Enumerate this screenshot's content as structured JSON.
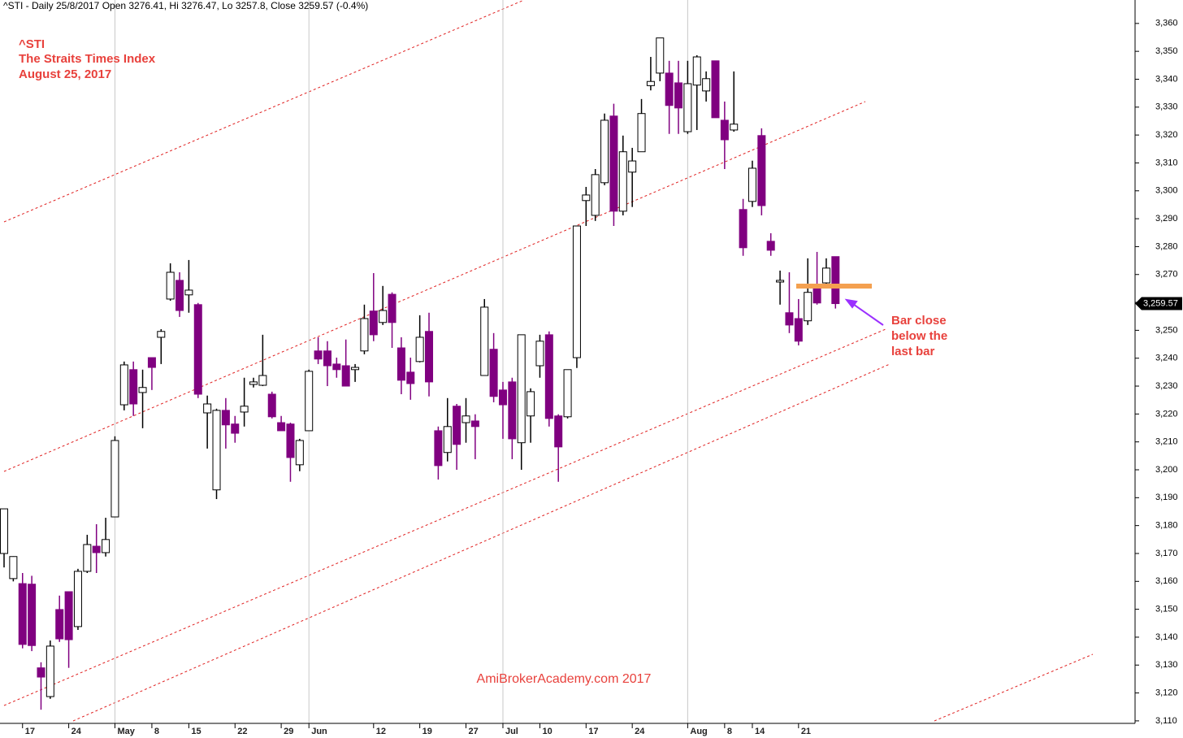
{
  "chart_data": {
    "type": "candlestick",
    "header": "^STI - Daily 25/8/2017 Open 3276.41, Hi 3276.47, Lo 3257.8, Close 3259.57 (-0.4%)",
    "title": "^STI",
    "subtitle": "The Straits Times Index",
    "date": "August 25, 2017",
    "annotation": [
      "Bar close",
      "below the",
      "last bar"
    ],
    "watermark": "AmiBrokerAcademy.com  2017",
    "categories": [
      null,
      null,
      "17",
      null,
      null,
      null,
      null,
      "24",
      null,
      null,
      null,
      null,
      "May",
      null,
      null,
      null,
      "8",
      null,
      null,
      null,
      "15",
      null,
      null,
      null,
      null,
      "22",
      null,
      null,
      null,
      null,
      "29",
      null,
      null,
      "Jun",
      null,
      null,
      null,
      null,
      null,
      null,
      "12",
      null,
      null,
      null,
      null,
      "19",
      null,
      null,
      null,
      null,
      "27",
      null,
      null,
      null,
      "Jul",
      null,
      null,
      null,
      "10",
      null,
      null,
      null,
      null,
      "17",
      null,
      null,
      null,
      null,
      "24",
      null,
      null,
      null,
      null,
      null,
      "Aug",
      null,
      null,
      null,
      "8",
      null,
      null,
      "14",
      null,
      null,
      null,
      null,
      "21",
      null,
      null,
      null,
      null
    ],
    "open": [
      3170,
      3161,
      3159.2,
      3159,
      3129,
      3118.7,
      3149.9,
      3156.3,
      3143.8,
      3163.6,
      3172.6,
      3170.3,
      3183.1,
      3223.3,
      3235.9,
      3227.7,
      3240.2,
      3247.5,
      3261.2,
      3267.9,
      3262.7,
      3259.2,
      3220.4,
      3192.8,
      3221.3,
      3216.4,
      3220.7,
      3230.6,
      3230.3,
      3227.1,
      3216.9,
      3216.4,
      3201.8,
      3214,
      3242.6,
      3242.6,
      3237.9,
      3237.3,
      3235.9,
      3242.6,
      3256.9,
      3252.8,
      3262.9,
      3243.7,
      3235,
      3238.8,
      3249.6,
      3214,
      3206.2,
      3222.8,
      3216.9,
      3217.5,
      3233.8,
      3243.2,
      3228.6,
      3231.5,
      3209.7,
      3219.3,
      3237.3,
      3248.4,
      3219.3,
      3219,
      3240.2,
      3296.5,
      3291.2,
      3302.9,
      3326.8,
      3292.7,
      3306.7,
      3314,
      3337.7,
      3342.2,
      3342.2,
      3338.7,
      3321.2,
      3337.9,
      3335.8,
      3346.6,
      3325.3,
      3321.8,
      3293.3,
      3296.2,
      3319.8,
      3281.9,
      3267.3,
      3256.3,
      3254.2,
      3253.4,
      3265.9,
      3267,
      3276.41
    ],
    "high": [
      3186,
      3169,
      3163,
      3162,
      3131,
      3138.8,
      3154.9,
      3156.3,
      3164.5,
      3176.7,
      3180.5,
      3182.8,
      3212,
      3238.8,
      3238.8,
      3235.9,
      3240.2,
      3250.4,
      3274,
      3270.8,
      3275.2,
      3259.8,
      3226.6,
      3221.9,
      3225.7,
      3219.3,
      3233,
      3233,
      3248.4,
      3228,
      3219.3,
      3216.9,
      3211.1,
      3235.9,
      3247.5,
      3246.1,
      3240.2,
      3246.7,
      3237.9,
      3259.2,
      3270.5,
      3265.9,
      3263.6,
      3247.5,
      3240.2,
      3255.4,
      3256.3,
      3215.5,
      3225.7,
      3223.6,
      3225.7,
      3219.9,
      3261.2,
      3249,
      3231.5,
      3233,
      3248.4,
      3229.2,
      3248.4,
      3249.6,
      3219.9,
      3235.9,
      3287.4,
      3301.4,
      3307.8,
      3327.7,
      3331.2,
      3319.8,
      3315.4,
      3332.9,
      3348,
      3354.8,
      3346.6,
      3346.6,
      3346.6,
      3348.6,
      3342.8,
      3346.6,
      3332,
      3342.8,
      3297.1,
      3310.8,
      3322.4,
      3284.8,
      3271.4,
      3270.8,
      3261.2,
      3275.8,
      3278.1,
      3275.8,
      3276.47
    ],
    "low": [
      3165,
      3160,
      3136,
      3135,
      3114,
      3117.9,
      3138.3,
      3129,
      3142.6,
      3163,
      3163,
      3168.9,
      3183,
      3221.3,
      3219.3,
      3214.9,
      3228.6,
      3237.9,
      3260.6,
      3254.8,
      3256.3,
      3225.7,
      3207.6,
      3189.5,
      3207.6,
      3209.7,
      3215.5,
      3229.5,
      3230,
      3218.4,
      3214,
      3195.7,
      3199.5,
      3214,
      3237.9,
      3230,
      3233,
      3230,
      3231.5,
      3241.4,
      3246.1,
      3251.9,
      3243.7,
      3227.1,
      3225.1,
      3238.5,
      3226.3,
      3196.5,
      3203,
      3200,
      3209.7,
      3203.8,
      3233.8,
      3224.2,
      3211.1,
      3203.8,
      3200,
      3209.7,
      3233,
      3215.5,
      3195.7,
      3218.4,
      3236.5,
      3287.4,
      3289.2,
      3302,
      3287.4,
      3291.2,
      3294.2,
      3314,
      3336,
      3339.3,
      3320.4,
      3320.4,
      3320.4,
      3321.8,
      3332,
      3326.2,
      3307.8,
      3321.2,
      3276.7,
      3294.2,
      3291.2,
      3276.7,
      3259.2,
      3249,
      3244.6,
      3251.9,
      3259.2,
      3265.9,
      3257.8
    ],
    "close": [
      3186,
      3168.9,
      3137.4,
      3137,
      3125.7,
      3136.8,
      3139.4,
      3139.1,
      3163.6,
      3173.2,
      3170.3,
      3175,
      3210.5,
      3237.6,
      3223.6,
      3229.5,
      3236.7,
      3249.6,
      3270.8,
      3257.1,
      3264.4,
      3227.1,
      3223.6,
      3221.3,
      3216.1,
      3213.1,
      3222.8,
      3231.5,
      3233.8,
      3219,
      3214,
      3204.4,
      3210.5,
      3235.3,
      3239.7,
      3237.3,
      3235.9,
      3230,
      3236.7,
      3254.2,
      3248.4,
      3257.1,
      3252.8,
      3232.1,
      3230.9,
      3247.5,
      3231.5,
      3201.5,
      3215.5,
      3209.1,
      3219.3,
      3215.5,
      3258.3,
      3226.3,
      3223.3,
      3211.1,
      3248.4,
      3228,
      3246.1,
      3218.4,
      3208.2,
      3235.9,
      3287.4,
      3298.5,
      3305.8,
      3325.3,
      3292.7,
      3314,
      3310.7,
      3327.7,
      3339.2,
      3354.8,
      3330.6,
      3329.7,
      3338.4,
      3348,
      3340.2,
      3326.2,
      3318.3,
      3323.9,
      3279.6,
      3308.1,
      3294.7,
      3278.7,
      3267.9,
      3251.9,
      3246.1,
      3263.6,
      3259.8,
      3272.3,
      3259.57
    ],
    "last_close_label": "3,259.57",
    "up_color": "#ffffff",
    "down_color": "#800080",
    "ylim": [
      3109.1,
      3368.4
    ],
    "yticks": [
      {
        "value": 3110,
        "label": "3,110"
      },
      {
        "value": 3120,
        "label": "3,120"
      },
      {
        "value": 3130,
        "label": "3,130"
      },
      {
        "value": 3140,
        "label": "3,140"
      },
      {
        "value": 3150,
        "label": "3,150"
      },
      {
        "value": 3160,
        "label": "3,160"
      },
      {
        "value": 3170,
        "label": "3,170"
      },
      {
        "value": 3180,
        "label": "3,180"
      },
      {
        "value": 3190,
        "label": "3,190"
      },
      {
        "value": 3200,
        "label": "3,200"
      },
      {
        "value": 3210,
        "label": "3,210"
      },
      {
        "value": 3220,
        "label": "3,220"
      },
      {
        "value": 3230,
        "label": "3,230"
      },
      {
        "value": 3240,
        "label": "3,240"
      },
      {
        "value": 3250,
        "label": "3,250"
      },
      {
        "value": 3260,
        "label": "3,260"
      },
      {
        "value": 3270,
        "label": "3,270"
      },
      {
        "value": 3280,
        "label": "3,280"
      },
      {
        "value": 3290,
        "label": "3,290"
      },
      {
        "value": 3300,
        "label": "3,300"
      },
      {
        "value": 3310,
        "label": "3,310"
      },
      {
        "value": 3320,
        "label": "3,320"
      },
      {
        "value": 3330,
        "label": "3,330"
      },
      {
        "value": 3340,
        "label": "3,340"
      },
      {
        "value": 3350,
        "label": "3,350"
      },
      {
        "value": 3360,
        "label": "3,360"
      }
    ],
    "month_grid": true
  }
}
